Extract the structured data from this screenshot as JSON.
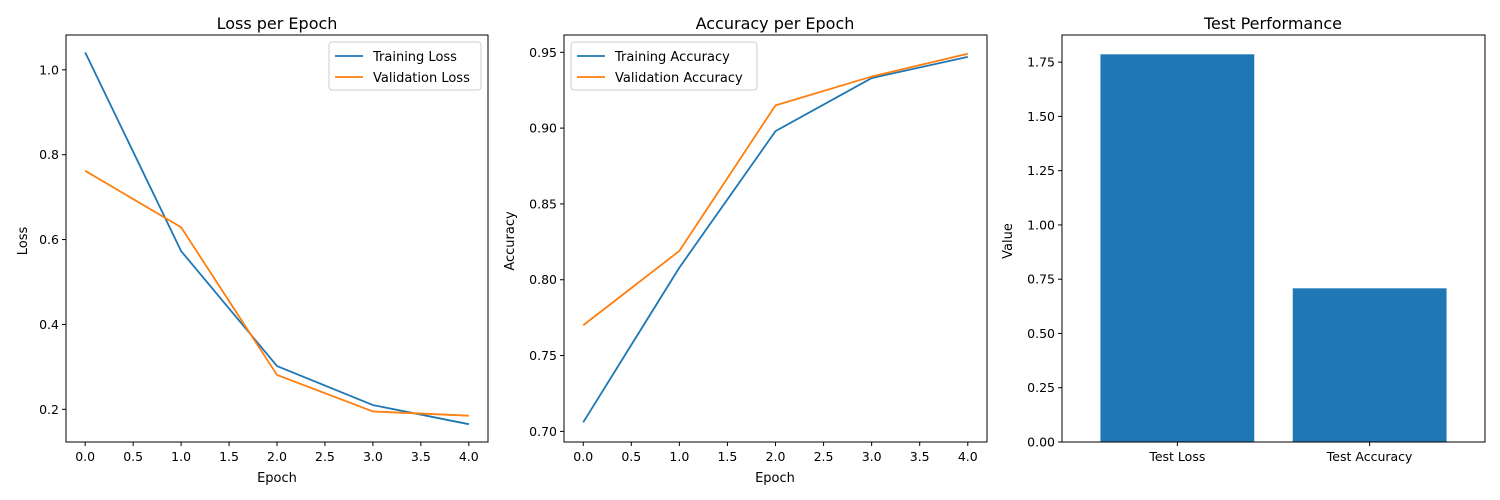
{
  "chart_data": [
    {
      "type": "line",
      "title": "Loss per Epoch",
      "xlabel": "Epoch",
      "ylabel": "Loss",
      "x": [
        0,
        1,
        2,
        3,
        4
      ],
      "xlim": [
        -0.2,
        4.2
      ],
      "ylim": [
        0.123,
        1.082
      ],
      "xticks": [
        0.0,
        0.5,
        1.0,
        1.5,
        2.0,
        2.5,
        3.0,
        3.5,
        4.0
      ],
      "xtick_labels": [
        "0.0",
        "0.5",
        "1.0",
        "1.5",
        "2.0",
        "2.5",
        "3.0",
        "3.5",
        "4.0"
      ],
      "yticks": [
        0.2,
        0.4,
        0.6,
        0.8,
        1.0
      ],
      "ytick_labels": [
        "0.2",
        "0.4",
        "0.6",
        "0.8",
        "1.0"
      ],
      "grid": false,
      "legend_position": "top-right",
      "series": [
        {
          "name": "Training Loss",
          "color": "#1f77b4",
          "values": [
            1.041,
            0.573,
            0.302,
            0.21,
            0.165
          ]
        },
        {
          "name": "Validation Loss",
          "color": "#ff7f0e",
          "values": [
            0.762,
            0.629,
            0.281,
            0.195,
            0.185
          ]
        }
      ]
    },
    {
      "type": "line",
      "title": "Accuracy per Epoch",
      "xlabel": "Epoch",
      "ylabel": "Accuracy",
      "x": [
        0,
        1,
        2,
        3,
        4
      ],
      "xlim": [
        -0.2,
        4.2
      ],
      "ylim": [
        0.693,
        0.9614
      ],
      "xticks": [
        0.0,
        0.5,
        1.0,
        1.5,
        2.0,
        2.5,
        3.0,
        3.5,
        4.0
      ],
      "xtick_labels": [
        "0.0",
        "0.5",
        "1.0",
        "1.5",
        "2.0",
        "2.5",
        "3.0",
        "3.5",
        "4.0"
      ],
      "yticks": [
        0.7,
        0.75,
        0.8,
        0.85,
        0.9,
        0.95
      ],
      "ytick_labels": [
        "0.70",
        "0.75",
        "0.80",
        "0.85",
        "0.90",
        "0.95"
      ],
      "grid": false,
      "legend_position": "top-left",
      "series": [
        {
          "name": "Training Accuracy",
          "color": "#1f77b4",
          "values": [
            0.706,
            0.808,
            0.898,
            0.933,
            0.947
          ]
        },
        {
          "name": "Validation Accuracy",
          "color": "#ff7f0e",
          "values": [
            0.77,
            0.819,
            0.915,
            0.934,
            0.949
          ]
        }
      ]
    },
    {
      "type": "bar",
      "title": "Test Performance",
      "xlabel": "",
      "ylabel": "Value",
      "categories": [
        "Test Loss",
        "Test Accuracy"
      ],
      "values": [
        1.786,
        0.708
      ],
      "color": "#1f77b4",
      "ylim": [
        0,
        1.875
      ],
      "yticks": [
        0.0,
        0.25,
        0.5,
        0.75,
        1.0,
        1.25,
        1.5,
        1.75
      ],
      "ytick_labels": [
        "0.00",
        "0.25",
        "0.50",
        "0.75",
        "1.00",
        "1.25",
        "1.50",
        "1.75"
      ],
      "grid": false
    }
  ]
}
